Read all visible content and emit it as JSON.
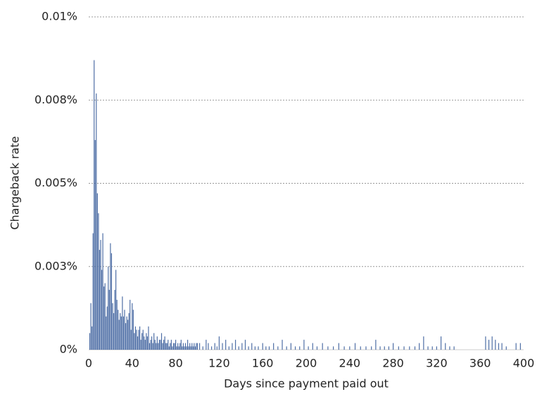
{
  "chart_data": {
    "type": "bar",
    "x_label": "Days since payment paid out",
    "y_label": "Chargeback rate",
    "color": "#4f6fa6",
    "grid": true,
    "xlim": [
      0,
      400
    ],
    "xticks": [
      0,
      40,
      80,
      120,
      160,
      200,
      240,
      280,
      320,
      360,
      400
    ],
    "ylim": [
      0,
      0.01
    ],
    "yticks": [
      {
        "value": 0,
        "label": "0%"
      },
      {
        "value": 0.0025,
        "label": "0.003%"
      },
      {
        "value": 0.005,
        "label": "0.005%"
      },
      {
        "value": 0.0075,
        "label": "0.008%"
      },
      {
        "value": 0.01,
        "label": "0.01%"
      }
    ],
    "x": [
      1,
      2,
      3,
      4,
      5,
      6,
      7,
      8,
      9,
      10,
      11,
      12,
      13,
      14,
      15,
      16,
      17,
      18,
      19,
      20,
      21,
      22,
      23,
      24,
      25,
      26,
      27,
      28,
      29,
      30,
      31,
      32,
      33,
      34,
      35,
      36,
      37,
      38,
      39,
      40,
      41,
      42,
      43,
      44,
      45,
      46,
      47,
      48,
      49,
      50,
      51,
      52,
      53,
      54,
      55,
      56,
      57,
      58,
      59,
      60,
      61,
      62,
      63,
      64,
      65,
      66,
      67,
      68,
      69,
      70,
      71,
      72,
      73,
      74,
      75,
      76,
      77,
      78,
      79,
      80,
      81,
      82,
      83,
      84,
      85,
      86,
      87,
      88,
      89,
      90,
      91,
      92,
      93,
      94,
      95,
      96,
      97,
      98,
      99,
      100,
      102,
      105,
      108,
      110,
      113,
      116,
      118,
      120,
      123,
      126,
      129,
      132,
      135,
      138,
      141,
      144,
      147,
      150,
      153,
      156,
      160,
      163,
      166,
      170,
      174,
      178,
      182,
      186,
      190,
      194,
      198,
      202,
      206,
      210,
      215,
      220,
      225,
      230,
      235,
      240,
      245,
      250,
      255,
      260,
      264,
      268,
      272,
      276,
      280,
      285,
      290,
      295,
      300,
      304,
      308,
      312,
      316,
      320,
      324,
      328,
      332,
      336,
      365,
      368,
      371,
      374,
      377,
      380,
      384,
      393,
      397
    ],
    "values": [
      0.0005,
      0.0014,
      0.0007,
      0.0035,
      0.0087,
      0.0063,
      0.0077,
      0.0047,
      0.0041,
      0.003,
      0.0033,
      0.0024,
      0.0035,
      0.0019,
      0.002,
      0.001,
      0.0013,
      0.0025,
      0.0018,
      0.0032,
      0.0029,
      0.0014,
      0.0011,
      0.0018,
      0.0024,
      0.0015,
      0.0012,
      0.0009,
      0.0011,
      0.001,
      0.0016,
      0.001,
      0.0012,
      0.0008,
      0.001,
      0.0009,
      0.0011,
      0.0015,
      0.0006,
      0.0014,
      0.0012,
      0.0005,
      0.0007,
      0.0006,
      0.0004,
      0.0006,
      0.0007,
      0.0003,
      0.0005,
      0.0006,
      0.0004,
      0.0003,
      0.0005,
      0.0004,
      0.0007,
      0.0002,
      0.0003,
      0.0004,
      0.0002,
      0.0005,
      0.0003,
      0.0002,
      0.0004,
      0.0002,
      0.0003,
      0.0003,
      0.0005,
      0.0002,
      0.0003,
      0.0004,
      0.0002,
      0.0002,
      0.0003,
      0.0001,
      0.0002,
      0.0003,
      0.0001,
      0.0002,
      0.0002,
      0.0003,
      0.0001,
      0.0002,
      0.0001,
      0.0002,
      0.0003,
      0.0001,
      0.0002,
      0.0001,
      0.0002,
      0.0001,
      0.0003,
      0.0001,
      0.0002,
      0.0001,
      0.0002,
      0.0001,
      0.0002,
      0.0001,
      0.0002,
      0.0002,
      0.0002,
      0.0001,
      0.0003,
      0.0002,
      0.0001,
      0.0002,
      0.0001,
      0.0004,
      0.0002,
      0.0003,
      0.0001,
      0.0002,
      0.0003,
      0.0001,
      0.0002,
      0.0003,
      0.0001,
      0.0002,
      0.0001,
      0.0001,
      0.0002,
      0.0001,
      0.0001,
      0.0002,
      0.0001,
      0.0003,
      0.0001,
      0.0002,
      0.0001,
      0.0001,
      0.0003,
      0.0001,
      0.0002,
      0.0001,
      0.0002,
      0.0001,
      0.0001,
      0.0002,
      0.0001,
      0.0001,
      0.0002,
      0.0001,
      0.0001,
      0.0001,
      0.0003,
      0.0001,
      0.0001,
      0.0001,
      0.0002,
      0.0001,
      0.0001,
      0.0001,
      0.0001,
      0.0002,
      0.0004,
      0.0001,
      0.0001,
      0.0001,
      0.0004,
      0.0002,
      0.0001,
      0.0001,
      0.0004,
      0.0003,
      0.0004,
      0.0003,
      0.0002,
      0.0002,
      0.0001,
      0.0002,
      0.0002
    ]
  }
}
